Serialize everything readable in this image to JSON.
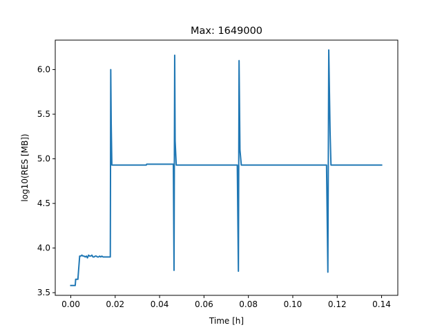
{
  "chart_data": {
    "type": "line",
    "title": "Max: 1649000",
    "xlabel": "Time [h]",
    "ylabel": "log10(RES [MB])",
    "xlim": [
      -0.007,
      0.1473
    ],
    "ylim": [
      3.47,
      6.33
    ],
    "xticks": [
      0.0,
      0.02,
      0.04,
      0.06,
      0.08,
      0.1,
      0.12,
      0.14
    ],
    "xtick_labels": [
      "0.00",
      "0.02",
      "0.04",
      "0.06",
      "0.08",
      "0.10",
      "0.12",
      "0.14"
    ],
    "yticks": [
      3.5,
      4.0,
      4.5,
      5.0,
      5.5,
      6.0
    ],
    "ytick_labels": [
      "3.5",
      "4.0",
      "4.5",
      "5.0",
      "5.5",
      "6.0"
    ],
    "grid": false,
    "series": [
      {
        "color": "#1f77b4",
        "x": [
          0.0,
          0.002,
          0.0022,
          0.003,
          0.0032,
          0.004,
          0.0045,
          0.005,
          0.0055,
          0.006,
          0.0065,
          0.007,
          0.0075,
          0.008,
          0.0085,
          0.009,
          0.0095,
          0.01,
          0.0105,
          0.011,
          0.0115,
          0.012,
          0.0125,
          0.013,
          0.0135,
          0.014,
          0.0145,
          0.015,
          0.0155,
          0.016,
          0.017,
          0.0178,
          0.018,
          0.0182,
          0.0185,
          0.019,
          0.02,
          0.025,
          0.03,
          0.034,
          0.0342,
          0.04,
          0.046,
          0.0462,
          0.0465,
          0.0468,
          0.047,
          0.0475,
          0.048,
          0.05,
          0.06,
          0.07,
          0.0748,
          0.075,
          0.0755,
          0.0758,
          0.0762,
          0.0768,
          0.0775,
          0.08,
          0.09,
          0.1,
          0.11,
          0.115,
          0.1152,
          0.1158,
          0.1162,
          0.1168,
          0.1172,
          0.118,
          0.12,
          0.13,
          0.14
        ],
        "y": [
          3.58,
          3.58,
          3.65,
          3.65,
          3.65,
          3.91,
          3.91,
          3.92,
          3.91,
          3.91,
          3.9,
          3.91,
          3.89,
          3.92,
          3.91,
          3.91,
          3.92,
          3.9,
          3.9,
          3.91,
          3.91,
          3.9,
          3.9,
          3.91,
          3.9,
          3.91,
          3.9,
          3.9,
          3.9,
          3.9,
          3.9,
          3.9,
          6.0,
          5.4,
          4.93,
          4.93,
          4.93,
          4.93,
          4.93,
          4.93,
          4.94,
          4.94,
          4.94,
          4.94,
          3.75,
          6.16,
          5.2,
          4.93,
          4.93,
          4.93,
          4.93,
          4.93,
          4.93,
          4.93,
          3.74,
          6.1,
          5.1,
          4.93,
          4.93,
          4.93,
          4.93,
          4.93,
          4.93,
          4.93,
          4.93,
          3.73,
          6.22,
          5.3,
          4.93,
          4.93,
          4.93,
          4.93,
          4.93
        ]
      }
    ]
  }
}
